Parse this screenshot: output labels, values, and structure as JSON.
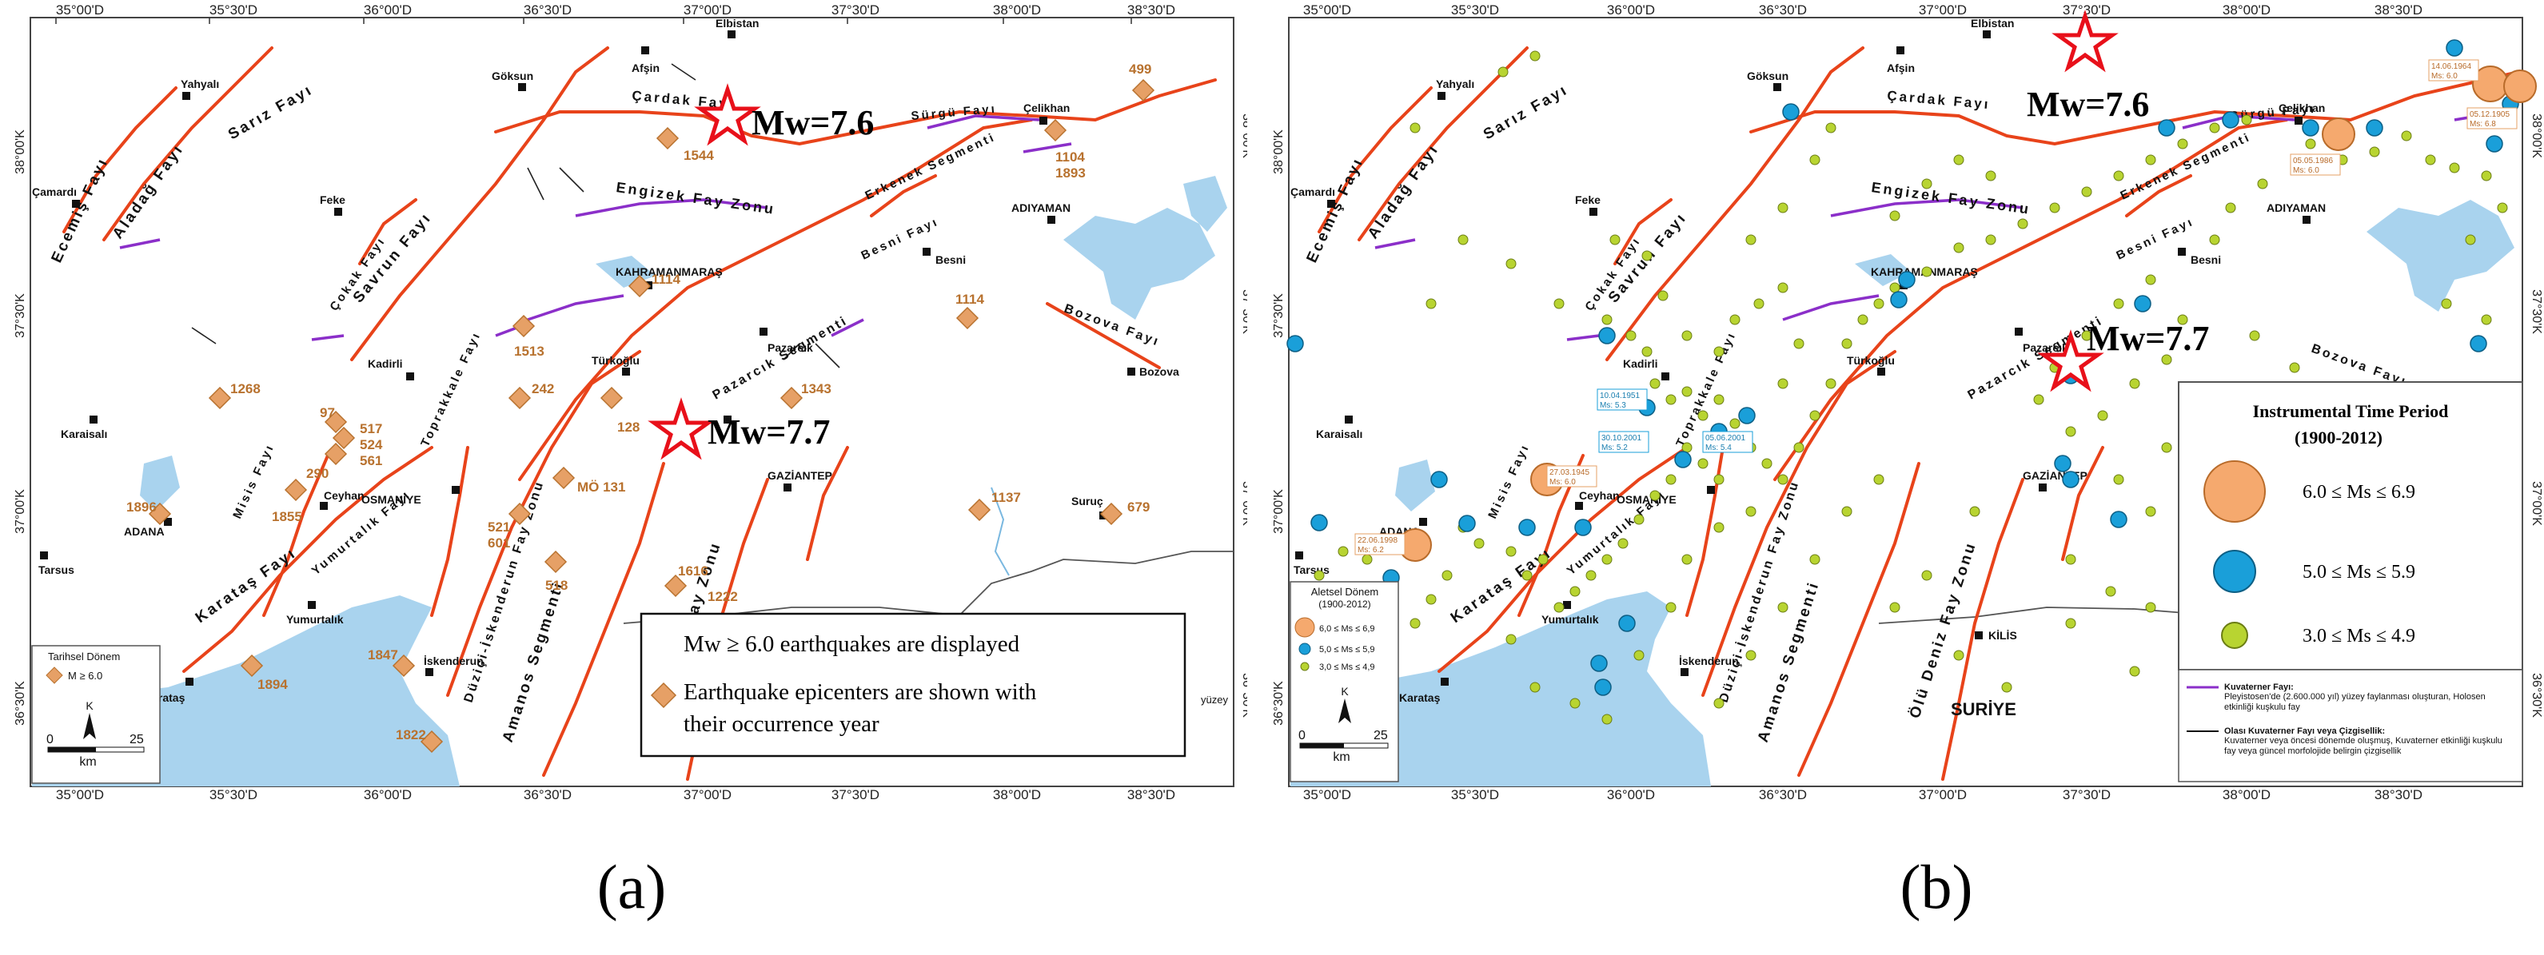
{
  "panel_a": {
    "caption": "(a)",
    "top_ticks": [
      "35°00'D",
      "35°30'D",
      "36°00'D",
      "36°30'D",
      "37°00'D",
      "37°30'D",
      "38°00'D",
      "38°30'D"
    ],
    "bottom_ticks": [
      "35°00'D",
      "35°30'D",
      "36°00'D",
      "36°30'D",
      "37°00'D",
      "37°30'D",
      "38°00'D",
      "38°30'D"
    ],
    "left_ticks": [
      "38°00'K",
      "37°30'K",
      "37°00'K",
      "36°30'K"
    ],
    "right_ticks": [
      "38°00'K",
      "37°30'K",
      "37°00'K",
      "36°30'K"
    ],
    "mw_labels": [
      "Mw=7.6",
      "Mw=7.7"
    ],
    "fault_labels": [
      "Sarız Fayı",
      "Ecemiş Fayı",
      "Aladağ Fayı",
      "Savrun Fayı",
      "Çokak Fayı",
      "Toprakkale Fayı",
      "Misis Fayı",
      "Karataş Fayı",
      "Yumurtalık Fayı",
      "Düziçi-İskenderun Fay Zonu",
      "Amanos Segmenti",
      "Ölü Deniz Fay Zonu",
      "Pazarcık Segmenti",
      "Erkenek Segmenti",
      "Engizek Fay Zonu",
      "Çardak Fayı",
      "Sürgü Fayı",
      "Besni Fayı",
      "Bozova Fayı"
    ],
    "places": [
      "Yahyalı",
      "Çamardı",
      "Feke",
      "Kadirli",
      "Karaisalı",
      "ADANA",
      "Tarsus",
      "Karataş",
      "Yumurtalık",
      "Ceyhan",
      "OSMANİYE",
      "İskenderun",
      "Türkoğlu",
      "KAHRAMANMARAŞ",
      "Pazarcık",
      "GAZİANTEP",
      "Göksun",
      "Afşin",
      "Elbistan",
      "Çelikhan",
      "ADIYAMAN",
      "Besni",
      "Bozova",
      "Suruç"
    ],
    "years": [
      "1544",
      "499",
      "1104",
      "1893",
      "1114",
      "1114",
      "1513",
      "242",
      "1268",
      "97",
      "517",
      "524",
      "561",
      "290",
      "1855",
      "1896",
      "128",
      "1343",
      "MÖ 131",
      "521",
      "601",
      "518",
      "1616",
      "1222",
      "1137",
      "679",
      "1847",
      "1894",
      "1822"
    ],
    "legend": {
      "title": "Tarihsel Dönem",
      "item": "M ≥ 6.0",
      "north": "K",
      "scale_zero": "0",
      "scale_max": "25",
      "scale_unit": "km"
    },
    "info_box": {
      "line1": "Mw ≥ 6.0 earthquakes are displayed",
      "line2": "Earthquake epicenters are shown with",
      "line3": "their occurrence year"
    },
    "yuzey": "yüzey",
    "colors": {
      "fault": "#e8431a",
      "purple": "#8b2fc9",
      "water": "#a9d3ee",
      "marker": "#e6a066",
      "star": "#e8101a"
    }
  },
  "panel_b": {
    "caption": "(b)",
    "top_ticks": [
      "35°00'D",
      "35°30'D",
      "36°00'D",
      "36°30'D",
      "37°00'D",
      "37°30'D",
      "38°00'D",
      "38°30'D"
    ],
    "bottom_ticks": [
      "35°00'D",
      "35°30'D",
      "36°00'D",
      "36°30'D",
      "37°00'D",
      "37°30'D",
      "38°00'D",
      "38°30'D"
    ],
    "left_ticks": [
      "38°00'K",
      "37°30'K",
      "37°00'K",
      "36°30'K"
    ],
    "right_ticks": [
      "38°00'K",
      "37°30'K",
      "37°00'K",
      "36°30'K"
    ],
    "mw_labels": [
      "Mw=7.6",
      "Mw=7.7"
    ],
    "fault_labels": [
      "Sarız Fayı",
      "Ecemiş Fayı",
      "Aladağ Fayı",
      "Savrun Fayı",
      "Çokak Fayı",
      "Toprakkale Fayı",
      "Misis Fayı",
      "Karataş Fayı",
      "Yumurtalık Fayı",
      "Düziçi-İskenderun Fay Zonu",
      "Amanos Segmenti",
      "Ölü Deniz Fay Zonu",
      "Pazarcık Segmenti",
      "Erkenek Segmenti",
      "Engizek Fay Zonu",
      "Çardak Fayı",
      "Sürgü Fayı",
      "Besni Fayı",
      "Bozova Fayı"
    ],
    "places": [
      "Yahyalı",
      "Çamardı",
      "Feke",
      "Kadirli",
      "Karaisalı",
      "ADANA",
      "Tarsus",
      "Karataş",
      "Yumurtalık",
      "Ceyhan",
      "OSMANİYE",
      "İskenderun",
      "Türkoğlu",
      "KAHRAMANMARAŞ",
      "Pazarcık",
      "GAZİANTEP",
      "Göksun",
      "Afşin",
      "Elbistan",
      "Çelikhan",
      "ADIYAMAN",
      "Besni",
      "KİLİS",
      "SURİYE"
    ],
    "event_tags": [
      {
        "date": "22.06.1998",
        "mag": "Ms: 6.2"
      },
      {
        "date": "27.03.1945",
        "mag": "Ms: 6.0"
      },
      {
        "date": "10.04.1951",
        "mag": "Ms: 5.3"
      },
      {
        "date": "30.10.2001",
        "mag": "Ms: 5.2"
      },
      {
        "date": "05.06.2001",
        "mag": "Ms: 5.4"
      },
      {
        "date": "05.05.1986",
        "mag": "Ms: 6.0"
      },
      {
        "date": "14.06.1964",
        "mag": "Ms: 6.0"
      },
      {
        "date": "05.12.1905",
        "mag": "Ms: 6.8"
      }
    ],
    "legend_small": {
      "title1": "Aletsel Dönem",
      "title2": "(1900-2012)",
      "items": [
        "6,0 ≤ Ms ≤ 6,9",
        "5,0 ≤ Ms ≤ 5,9",
        "3,0 ≤ Ms ≤ 4,9"
      ],
      "north": "K",
      "scale_zero": "0",
      "scale_max": "25",
      "scale_unit": "km"
    },
    "legend_large": {
      "title1": "Instrumental Time Period",
      "title2": "(1900-2012)",
      "items": [
        "6.0 ≤ Ms ≤ 6.9",
        "5.0 ≤ Ms ≤ 5.9",
        "3.0 ≤ Ms ≤ 4.9"
      ]
    },
    "legend_faults": [
      {
        "label": "Kuvaterner Fayı:",
        "text": "Pleyistosen'de (2.600.000 yıl) yüzey faylanması oluşturan, Holosen etkinliği kuşkulu fay"
      },
      {
        "label": "Olası Kuvaterner Fayı veya Çizgisellik:",
        "text": "Kuvaterner veya öncesi dönemde oluşmuş, Kuvaterner etkinliği kuşkulu fay veya güncel morfolojide belirgin çizgisellik"
      }
    ],
    "colors": {
      "large": "#f5a96e",
      "medium": "#1a9fd9",
      "small": "#b8d431",
      "fault": "#e8431a",
      "purple": "#8b2fc9",
      "water": "#a9d3ee",
      "star": "#e8101a"
    }
  }
}
